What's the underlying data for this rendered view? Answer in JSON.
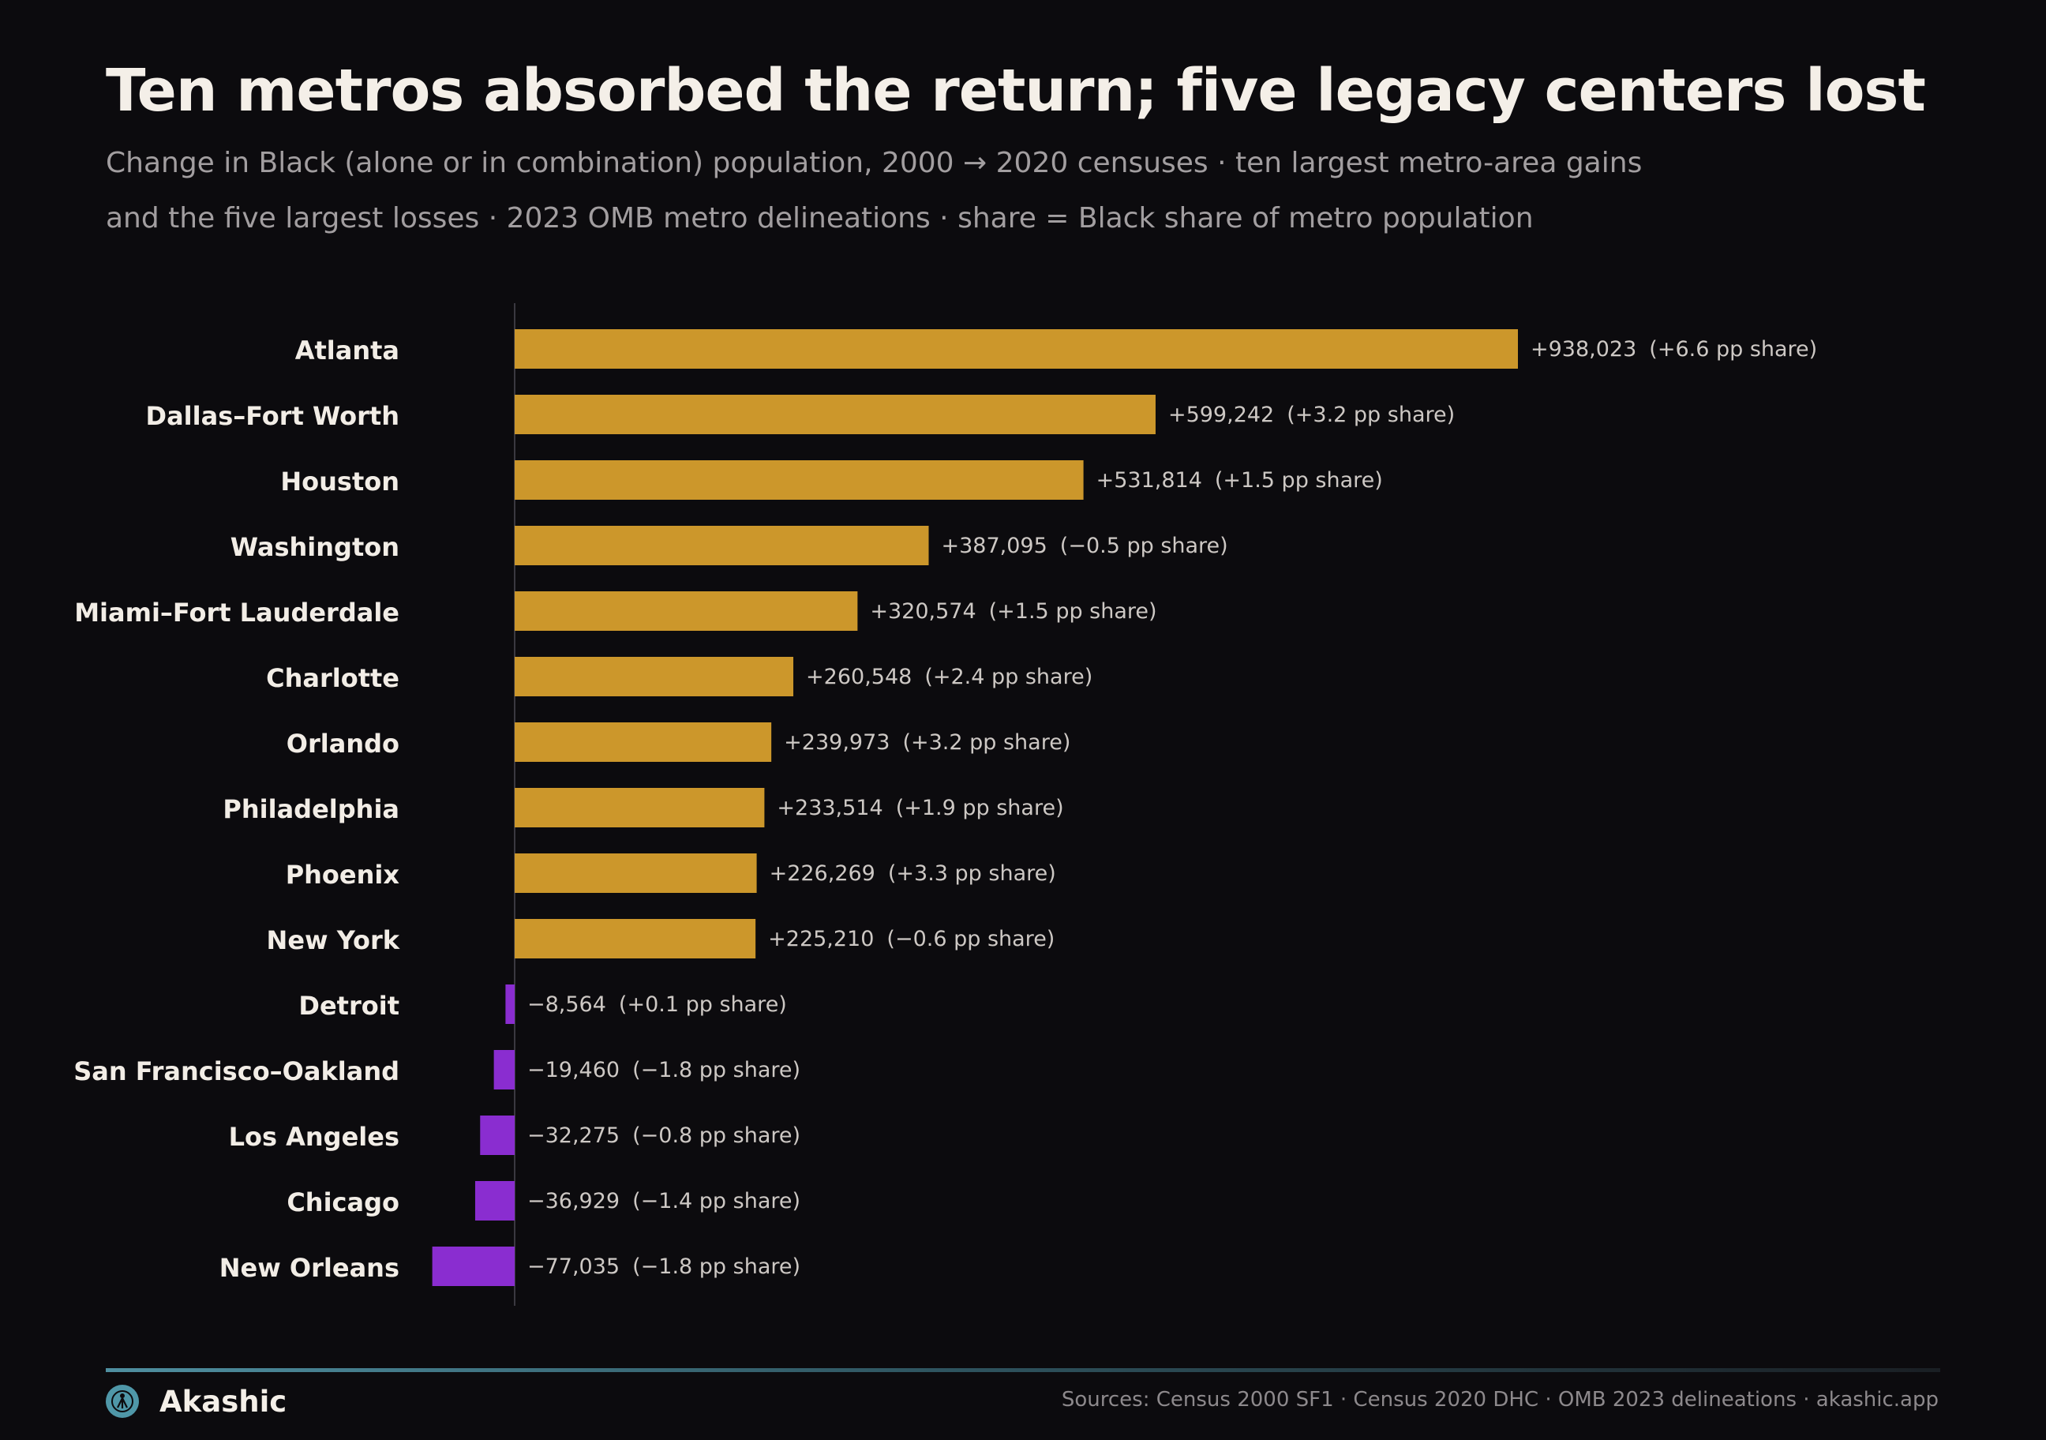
{
  "header": {
    "title": "Ten metros absorbed the return; five legacy centers lost",
    "subtitle": "Change in Black (alone or in combination) population, 2000 → 2020 censuses · ten largest metro-area gains and the five largest losses · 2023 OMB metro delineations · share = Black share of metro population"
  },
  "chart_data": {
    "type": "bar",
    "orientation": "horizontal",
    "title": "Ten metros absorbed the return; five legacy centers lost",
    "subtitle": "Change in Black (alone or in combination) population, 2000 → 2020 censuses · ten largest metro-area gains and the five largest losses · 2023 OMB metro delineations · share = Black share of metro population",
    "categories": [
      "Atlanta",
      "Dallas–Fort Worth",
      "Houston",
      "Washington",
      "Miami–Fort Lauderdale",
      "Charlotte",
      "Orlando",
      "Philadelphia",
      "Phoenix",
      "New York",
      "Detroit",
      "San Francisco–Oakland",
      "Los Angeles",
      "Chicago",
      "New Orleans"
    ],
    "values": [
      938023,
      599242,
      531814,
      387095,
      320574,
      260548,
      239973,
      233514,
      226269,
      225210,
      -8564,
      -19460,
      -32275,
      -36929,
      -77035
    ],
    "value_labels": [
      "+938,023",
      "+599,242",
      "+531,814",
      "+387,095",
      "+320,574",
      "+260,548",
      "+239,973",
      "+233,514",
      "+226,269",
      "+225,210",
      "−8,564",
      "−19,460",
      "−32,275",
      "−36,929",
      "−77,035"
    ],
    "share_change_labels": [
      "(+6.6 pp share)",
      "(+3.2 pp share)",
      "(+1.5 pp share)",
      "(−0.5 pp share)",
      "(+1.5 pp share)",
      "(+2.4 pp share)",
      "(+3.2 pp share)",
      "(+1.9 pp share)",
      "(+3.3 pp share)",
      "(−0.6 pp share)",
      "(+0.1 pp share)",
      "(−1.8 pp share)",
      "(−0.8 pp share)",
      "(−1.4 pp share)",
      "(−1.8 pp share)"
    ],
    "colors": {
      "gain": "#cc972b",
      "loss": "#8a2dd0"
    },
    "grid": false,
    "legend": "none"
  },
  "footer": {
    "brand": "Akashic",
    "sources": "Sources: Census 2000 SF1 · Census 2020 DHC · OMB 2023 delineations  ·  akashic.app"
  }
}
